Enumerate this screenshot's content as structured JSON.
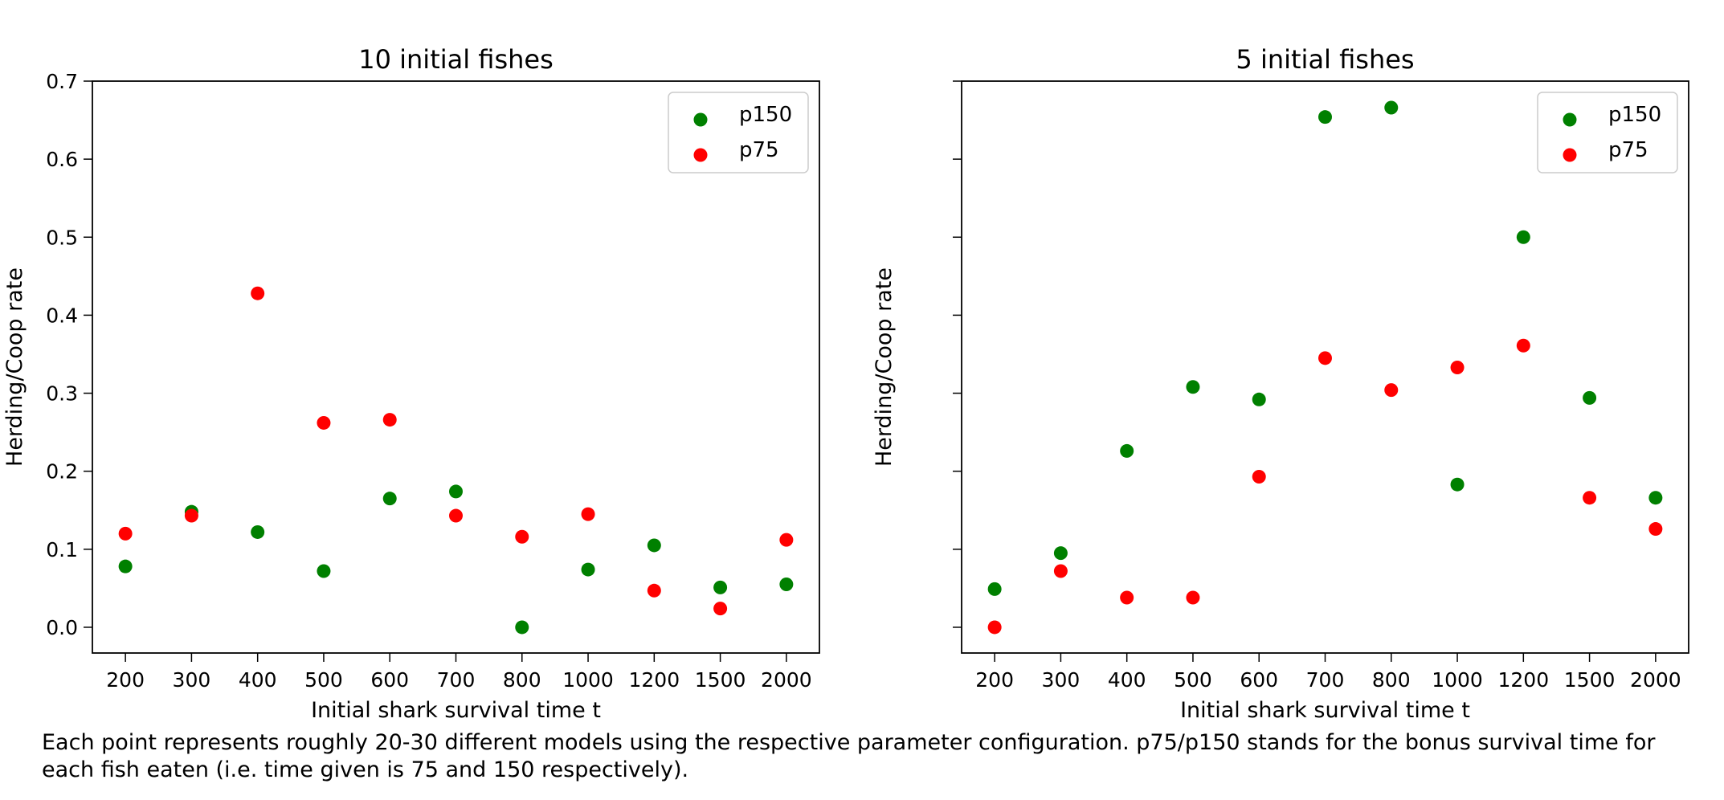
{
  "chart_data": [
    {
      "type": "scatter",
      "title": "10 initial fishes",
      "xlabel": "Initial shark survival time t",
      "ylabel": "Herding/Coop rate",
      "categories": [
        "200",
        "300",
        "400",
        "500",
        "600",
        "700",
        "800",
        "1000",
        "1200",
        "1500",
        "2000"
      ],
      "ylim": [
        -0.033,
        0.7
      ],
      "yticks": [
        "0.0",
        "0.1",
        "0.2",
        "0.3",
        "0.4",
        "0.5",
        "0.6",
        "0.7"
      ],
      "grid": false,
      "legend_position": "top-right",
      "series": [
        {
          "name": "p150",
          "color": "#008000",
          "values": [
            0.078,
            0.148,
            0.122,
            0.072,
            0.165,
            0.174,
            0.0,
            0.074,
            0.105,
            0.051,
            0.055
          ]
        },
        {
          "name": "p75",
          "color": "#ff0000",
          "values": [
            0.12,
            0.143,
            0.428,
            0.262,
            0.266,
            0.143,
            0.116,
            0.145,
            0.047,
            0.024,
            0.112
          ]
        }
      ]
    },
    {
      "type": "scatter",
      "title": "5 initial fishes",
      "xlabel": "Initial shark survival time t",
      "ylabel": "Herding/Coop rate",
      "categories": [
        "200",
        "300",
        "400",
        "500",
        "600",
        "700",
        "800",
        "1000",
        "1200",
        "1500",
        "2000"
      ],
      "ylim": [
        -0.033,
        0.7
      ],
      "yticks": [
        "",
        "",
        "",
        "",
        "",
        "",
        "",
        ""
      ],
      "grid": false,
      "legend_position": "top-right",
      "series": [
        {
          "name": "p150",
          "color": "#008000",
          "values": [
            0.049,
            0.095,
            0.226,
            0.308,
            0.292,
            0.654,
            0.666,
            0.183,
            0.5,
            0.294,
            0.166
          ]
        },
        {
          "name": "p75",
          "color": "#ff0000",
          "values": [
            0.0,
            0.072,
            0.038,
            0.038,
            0.193,
            0.345,
            0.304,
            0.333,
            0.361,
            0.166,
            0.126
          ]
        }
      ]
    }
  ],
  "caption": "Each point represents roughly 20-30 different models using the respective parameter configuration. p75/p150 stands for the bonus survival time for each fish eaten (i.e. time given is 75 and 150 respectively)."
}
